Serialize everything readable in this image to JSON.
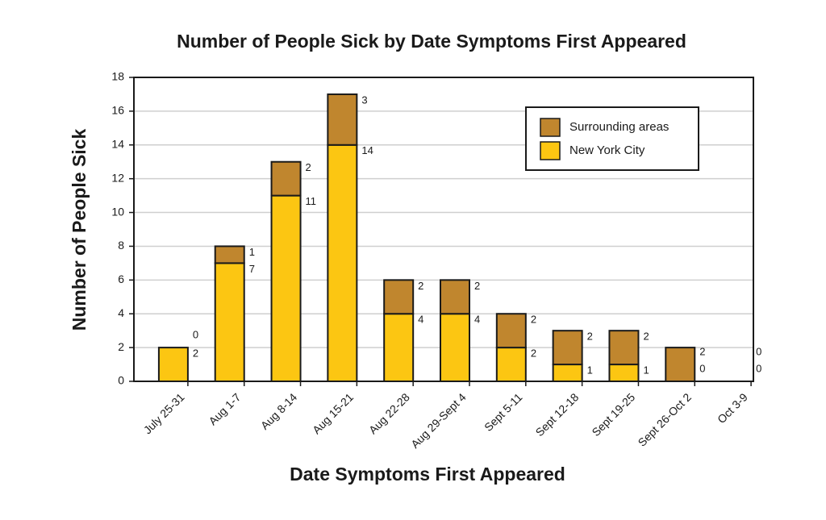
{
  "chart_data": {
    "type": "stacked-bar",
    "title": "Number of People Sick by Date Symptoms First Appeared",
    "x_label": "Date Symptoms First Appeared",
    "y_label": "Number of People Sick",
    "categories": [
      "July 25-31",
      "Aug 1-7",
      "Aug 8-14",
      "Aug 15-21",
      "Aug 22-28",
      "Aug 29-Sept 4",
      "Sept 5-11",
      "Sept 12-18",
      "Sept 19-25",
      "Sept 26-Oct 2",
      "Oct 3-9"
    ],
    "series": [
      {
        "name": "New York City",
        "color": "#fcc612",
        "values": [
          2,
          7,
          11,
          14,
          4,
          4,
          2,
          1,
          1,
          0,
          0
        ]
      },
      {
        "name": "Surrounding areas",
        "color": "#c0862e",
        "values": [
          0,
          1,
          2,
          3,
          2,
          2,
          2,
          2,
          2,
          2,
          0
        ]
      }
    ],
    "ylim": [
      0,
      18
    ],
    "yticks": [
      0,
      2,
      4,
      6,
      8,
      10,
      12,
      14,
      16,
      18
    ],
    "grid": true
  }
}
